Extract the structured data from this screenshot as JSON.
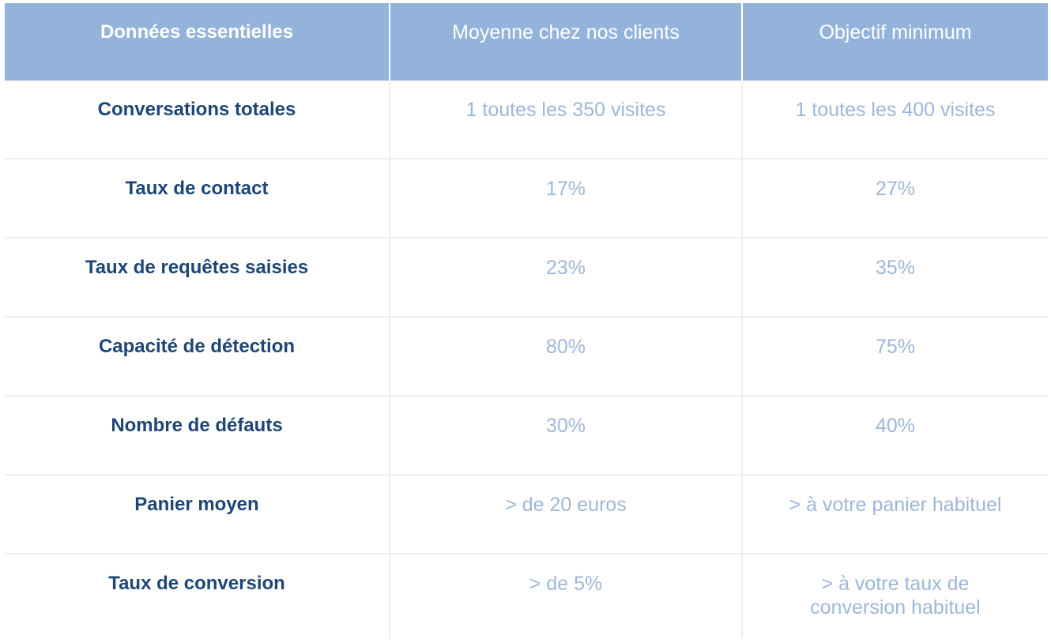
{
  "header": {
    "col1": "Données essentielles",
    "col2": "Moyenne chez nos clients",
    "col3": "Objectif minimum"
  },
  "rows": [
    {
      "label": "Conversations totales",
      "avg": "1 toutes les 350 visites",
      "min": "1 toutes les 400 visites"
    },
    {
      "label": "Taux de contact",
      "avg": "17%",
      "min": "27%"
    },
    {
      "label": "Taux de requêtes saisies",
      "avg": "23%",
      "min": "35%"
    },
    {
      "label": "Capacité de détection",
      "avg": "80%",
      "min": "75%"
    },
    {
      "label": "Nombre de défauts",
      "avg": "30%",
      "min": "40%"
    },
    {
      "label": "Panier moyen",
      "avg": "> de 20 euros",
      "min": "> à votre panier habituel"
    },
    {
      "label": "Taux de conversion",
      "avg": "> de 5%",
      "min": "> à votre taux de conversion habituel"
    }
  ],
  "colors": {
    "header_bg": "#94b3da",
    "label_text": "#1d4677",
    "value_text": "#9db7d8",
    "divider": "#eeeeee"
  }
}
